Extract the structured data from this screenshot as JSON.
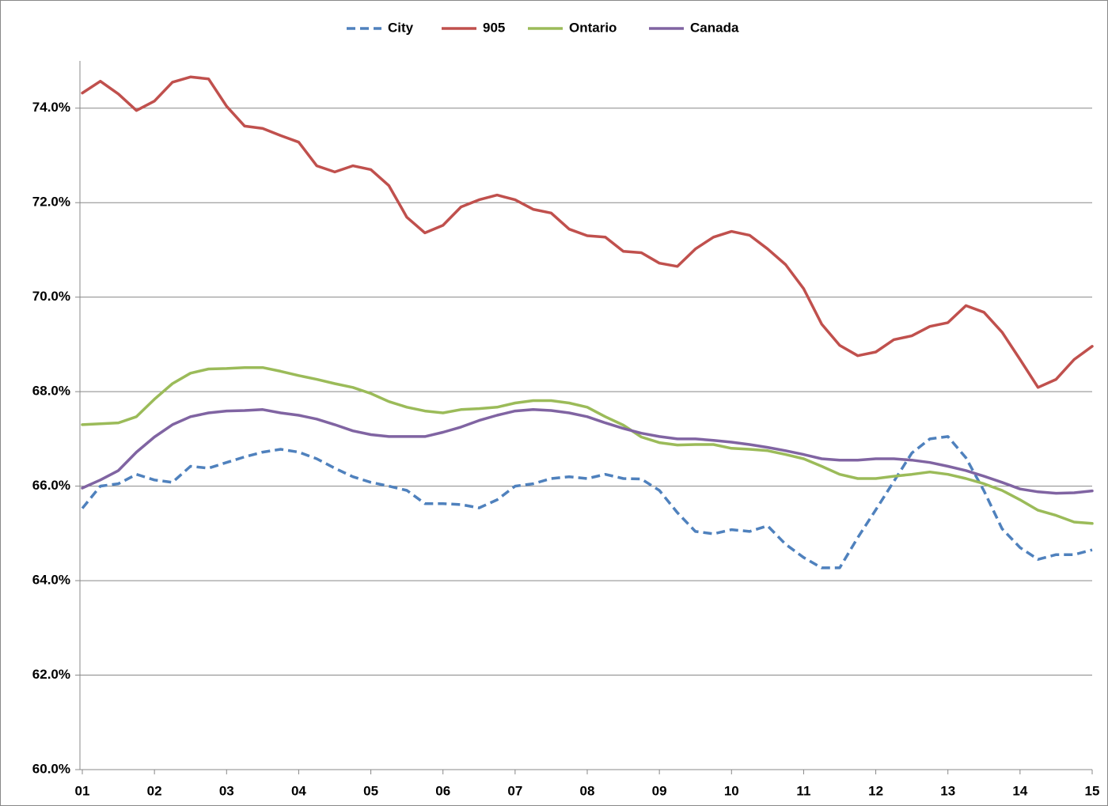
{
  "chart_data": {
    "type": "line",
    "x": [
      1,
      1.25,
      1.5,
      1.75,
      2,
      2.25,
      2.5,
      2.75,
      3,
      3.25,
      3.5,
      3.75,
      4,
      4.25,
      4.5,
      4.75,
      5,
      5.25,
      5.5,
      5.75,
      6,
      6.25,
      6.5,
      6.75,
      7,
      7.25,
      7.5,
      7.75,
      8,
      8.25,
      8.5,
      8.75,
      9,
      9.25,
      9.5,
      9.75,
      10,
      10.25,
      10.5,
      10.75,
      11,
      11.25,
      11.5,
      11.75,
      12,
      12.25,
      12.5,
      12.75,
      13,
      13.25,
      13.5,
      13.75,
      14,
      14.25,
      14.5,
      14.75,
      15
    ],
    "series": [
      {
        "name": "City",
        "color": "#4f81bd",
        "line_style": "dashed",
        "values": [
          65.53,
          66.0,
          66.05,
          66.25,
          66.13,
          66.08,
          66.42,
          66.38,
          66.5,
          66.62,
          66.72,
          66.78,
          66.72,
          66.58,
          66.38,
          66.2,
          66.08,
          66.0,
          65.91,
          65.63,
          65.63,
          65.61,
          65.54,
          65.71,
          66.0,
          66.05,
          66.16,
          66.2,
          66.16,
          66.25,
          66.16,
          66.15,
          65.91,
          65.44,
          65.04,
          64.99,
          65.08,
          65.04,
          65.16,
          64.77,
          64.49,
          64.27,
          64.27,
          64.91,
          65.5,
          66.1,
          66.7,
          67.0,
          67.05,
          66.6,
          65.9,
          65.1,
          64.7,
          64.45,
          64.55,
          64.55,
          64.65
        ]
      },
      {
        "name": "905",
        "color": "#c0504d",
        "line_style": "solid",
        "values": [
          74.32,
          74.57,
          74.3,
          73.95,
          74.15,
          74.55,
          74.66,
          74.62,
          74.04,
          73.62,
          73.57,
          73.42,
          73.28,
          72.78,
          72.65,
          72.78,
          72.7,
          72.36,
          71.69,
          71.36,
          71.52,
          71.91,
          72.06,
          72.16,
          72.06,
          71.86,
          71.78,
          71.44,
          71.3,
          71.27,
          70.97,
          70.94,
          70.72,
          70.65,
          71.02,
          71.27,
          71.39,
          71.31,
          71.02,
          70.69,
          70.18,
          69.43,
          68.98,
          68.76,
          68.84,
          69.1,
          69.18,
          69.38,
          69.46,
          69.82,
          69.68,
          69.26,
          68.68,
          68.09,
          68.26,
          68.68,
          68.96
        ]
      },
      {
        "name": "Ontario",
        "color": "#9bbb59",
        "line_style": "solid",
        "values": [
          67.3,
          67.32,
          67.34,
          67.47,
          67.84,
          68.17,
          68.39,
          68.48,
          68.49,
          68.51,
          68.51,
          68.43,
          68.34,
          68.26,
          68.17,
          68.09,
          67.96,
          67.79,
          67.67,
          67.59,
          67.55,
          67.62,
          67.64,
          67.67,
          67.76,
          67.81,
          67.81,
          67.76,
          67.67,
          67.47,
          67.29,
          67.04,
          66.92,
          66.87,
          66.88,
          66.88,
          66.8,
          66.78,
          66.75,
          66.67,
          66.58,
          66.42,
          66.25,
          66.16,
          66.16,
          66.21,
          66.25,
          66.3,
          66.25,
          66.16,
          66.05,
          65.91,
          65.71,
          65.49,
          65.38,
          65.24,
          65.21
        ]
      },
      {
        "name": "Canada",
        "color": "#8064a2",
        "line_style": "solid",
        "values": [
          65.96,
          66.13,
          66.33,
          66.72,
          67.04,
          67.3,
          67.47,
          67.55,
          67.59,
          67.6,
          67.62,
          67.55,
          67.5,
          67.42,
          67.3,
          67.17,
          67.09,
          67.05,
          67.05,
          67.05,
          67.14,
          67.25,
          67.39,
          67.5,
          67.59,
          67.62,
          67.6,
          67.55,
          67.47,
          67.34,
          67.22,
          67.12,
          67.05,
          67.0,
          67.0,
          66.97,
          66.93,
          66.88,
          66.82,
          66.75,
          66.67,
          66.58,
          66.55,
          66.55,
          66.58,
          66.58,
          66.55,
          66.5,
          66.42,
          66.33,
          66.21,
          66.08,
          65.94,
          65.88,
          65.85,
          65.86,
          65.9
        ]
      }
    ],
    "xlim": [
      1,
      15
    ],
    "xticks": [
      {
        "value": 1,
        "label": "01"
      },
      {
        "value": 2,
        "label": "02"
      },
      {
        "value": 3,
        "label": "03"
      },
      {
        "value": 4,
        "label": "04"
      },
      {
        "value": 5,
        "label": "05"
      },
      {
        "value": 6,
        "label": "06"
      },
      {
        "value": 7,
        "label": "07"
      },
      {
        "value": 8,
        "label": "08"
      },
      {
        "value": 9,
        "label": "09"
      },
      {
        "value": 10,
        "label": "10"
      },
      {
        "value": 11,
        "label": "11"
      },
      {
        "value": 12,
        "label": "12"
      },
      {
        "value": 13,
        "label": "13"
      },
      {
        "value": 14,
        "label": "14"
      },
      {
        "value": 15,
        "label": "15"
      }
    ],
    "ylim": [
      60,
      75
    ],
    "yticks": [
      {
        "value": 60,
        "label": "60.0%"
      },
      {
        "value": 62,
        "label": "62.0%"
      },
      {
        "value": 64,
        "label": "64.0%"
      },
      {
        "value": 66,
        "label": "66.0%"
      },
      {
        "value": 68,
        "label": "68.0%"
      },
      {
        "value": 70,
        "label": "70.0%"
      },
      {
        "value": 72,
        "label": "72.0%"
      },
      {
        "value": 74,
        "label": "74.0%"
      }
    ],
    "grid": true,
    "legend": "top"
  }
}
